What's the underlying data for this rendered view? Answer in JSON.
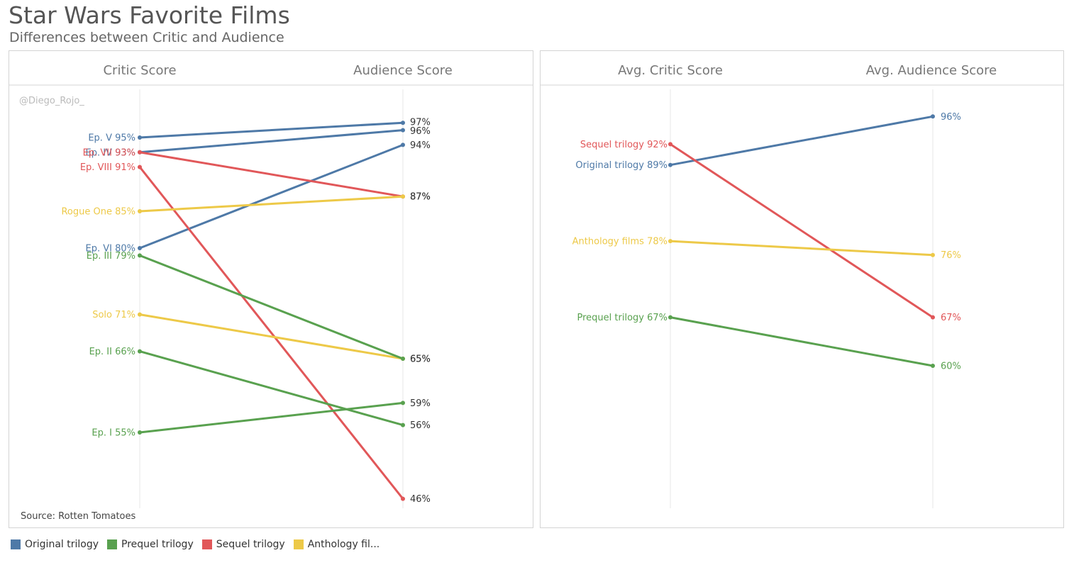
{
  "title": "Star Wars Favorite Films",
  "subtitle": "Differences between Critic and Audience",
  "colors": {
    "Original trilogy": "#4e79a7",
    "Prequel trilogy": "#59a14f",
    "Sequel trilogy": "#e15759",
    "Anthology films": "#edc948"
  },
  "legend": [
    {
      "label": "Original trilogy",
      "color": "#4e79a7"
    },
    {
      "label": "Prequel trilogy",
      "color": "#59a14f"
    },
    {
      "label": "Sequel trilogy",
      "color": "#e15759"
    },
    {
      "label": "Anthology fil...",
      "color": "#edc948"
    }
  ],
  "chart_data": [
    {
      "type": "line",
      "chart_style": "slope",
      "columns": [
        "Critic Score",
        "Audience Score"
      ],
      "watermark": "@Diego_Rojo_",
      "source": "Source: Rotten Tomatoes",
      "grid": false,
      "series": [
        {
          "name": "Ep. V",
          "group": "Original trilogy",
          "values": [
            95,
            97
          ]
        },
        {
          "name": "Ep. IV",
          "group": "Original trilogy",
          "values": [
            93,
            96
          ]
        },
        {
          "name": "Ep. VI",
          "group": "Original trilogy",
          "values": [
            80,
            94
          ]
        },
        {
          "name": "Ep. VII",
          "group": "Sequel trilogy",
          "values": [
            93,
            87
          ]
        },
        {
          "name": "Ep. VIII",
          "group": "Sequel trilogy",
          "values": [
            91,
            46
          ]
        },
        {
          "name": "Rogue One",
          "group": "Anthology films",
          "values": [
            85,
            87
          ]
        },
        {
          "name": "Solo",
          "group": "Anthology films",
          "values": [
            71,
            65
          ]
        },
        {
          "name": "Ep. III",
          "group": "Prequel trilogy",
          "values": [
            79,
            65
          ]
        },
        {
          "name": "Ep. II",
          "group": "Prequel trilogy",
          "values": [
            66,
            56
          ]
        },
        {
          "name": "Ep. I",
          "group": "Prequel trilogy",
          "values": [
            55,
            59
          ]
        }
      ]
    },
    {
      "type": "line",
      "chart_style": "slope",
      "columns": [
        "Avg. Critic Score",
        "Avg. Audience Score"
      ],
      "grid": false,
      "series": [
        {
          "name": "Original trilogy",
          "group": "Original trilogy",
          "values": [
            89,
            96
          ]
        },
        {
          "name": "Sequel trilogy",
          "group": "Sequel trilogy",
          "values": [
            92,
            67
          ]
        },
        {
          "name": "Anthology films",
          "group": "Anthology films",
          "values": [
            78,
            76
          ]
        },
        {
          "name": "Prequel trilogy",
          "group": "Prequel trilogy",
          "values": [
            67,
            60
          ]
        }
      ]
    }
  ]
}
